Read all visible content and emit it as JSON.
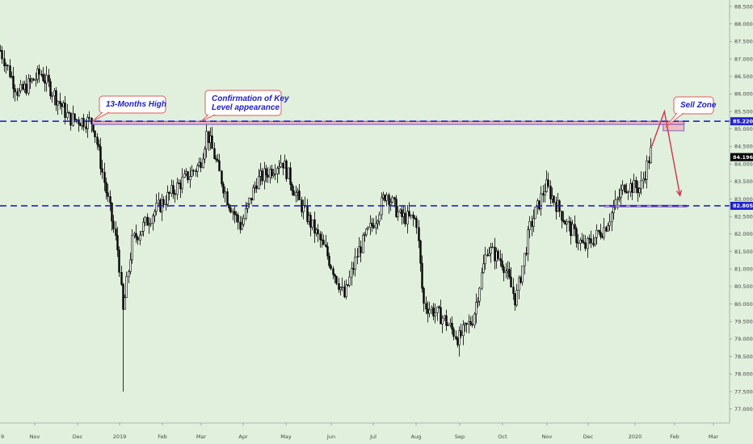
{
  "chart_data": {
    "type": "candlestick",
    "x_labels": [
      "Nov",
      "Dec",
      "2019",
      "Feb",
      "Mar",
      "Apr",
      "May",
      "Jun",
      "Jul",
      "Aug",
      "Sep",
      "Oct",
      "Nov",
      "Dec",
      "2020",
      "Feb",
      "Mar"
    ],
    "edge_x_label": "9",
    "y_ticks": [
      "88.500",
      "88.000",
      "87.500",
      "87.000",
      "86.500",
      "86.000",
      "85.500",
      "85.000",
      "84.500",
      "84.000",
      "83.500",
      "83.000",
      "82.500",
      "82.000",
      "81.500",
      "81.000",
      "80.500",
      "80.000",
      "79.500",
      "79.000",
      "78.500",
      "78.000",
      "77.500",
      "77.000"
    ],
    "ylim": [
      76.6,
      88.6
    ],
    "levels": [
      {
        "value": 85.22,
        "label": "85.220",
        "color": "#2222cc",
        "style": "dashed"
      },
      {
        "value": 82.805,
        "label": "82.805",
        "color": "#2222cc",
        "style": "dashed"
      }
    ],
    "last_price": {
      "value": 84.196,
      "label": "84.196",
      "color": "#000000"
    },
    "trend_anchors": [
      {
        "date": "2018-10-01",
        "price": 87.8
      },
      {
        "date": "2018-10-20",
        "price": 86.0
      },
      {
        "date": "2018-11-05",
        "price": 86.6
      },
      {
        "date": "2018-11-25",
        "price": 85.3
      },
      {
        "date": "2018-12-12",
        "price": 85.2
      },
      {
        "date": "2018-12-22",
        "price": 83.2
      },
      {
        "date": "2018-12-31",
        "price": 81.4
      },
      {
        "date": "2019-01-03",
        "price": 79.7
      },
      {
        "date": "2019-01-10",
        "price": 81.8
      },
      {
        "date": "2019-01-25",
        "price": 82.6
      },
      {
        "date": "2019-02-10",
        "price": 83.3
      },
      {
        "date": "2019-02-28",
        "price": 84.0
      },
      {
        "date": "2019-03-05",
        "price": 84.9
      },
      {
        "date": "2019-03-20",
        "price": 83.0
      },
      {
        "date": "2019-03-30",
        "price": 82.2
      },
      {
        "date": "2019-04-10",
        "price": 83.5
      },
      {
        "date": "2019-04-28",
        "price": 84.1
      },
      {
        "date": "2019-05-10",
        "price": 82.9
      },
      {
        "date": "2019-05-28",
        "price": 81.5
      },
      {
        "date": "2019-06-10",
        "price": 80.2
      },
      {
        "date": "2019-06-20",
        "price": 81.5
      },
      {
        "date": "2019-07-03",
        "price": 82.5
      },
      {
        "date": "2019-07-10",
        "price": 83.2
      },
      {
        "date": "2019-07-20",
        "price": 82.5
      },
      {
        "date": "2019-08-01",
        "price": 82.4
      },
      {
        "date": "2019-08-06",
        "price": 80.0
      },
      {
        "date": "2019-08-20",
        "price": 79.6
      },
      {
        "date": "2019-08-31",
        "price": 79.0
      },
      {
        "date": "2019-09-10",
        "price": 79.6
      },
      {
        "date": "2019-09-20",
        "price": 81.6
      },
      {
        "date": "2019-10-01",
        "price": 81.2
      },
      {
        "date": "2019-10-10",
        "price": 80.1
      },
      {
        "date": "2019-10-20",
        "price": 82.2
      },
      {
        "date": "2019-10-31",
        "price": 83.4
      },
      {
        "date": "2019-11-15",
        "price": 82.3
      },
      {
        "date": "2019-11-28",
        "price": 81.6
      },
      {
        "date": "2019-12-12",
        "price": 82.2
      },
      {
        "date": "2019-12-25",
        "price": 83.4
      },
      {
        "date": "2020-01-05",
        "price": 83.3
      },
      {
        "date": "2020-01-12",
        "price": 84.2
      },
      {
        "date": "2020-01-14",
        "price": 84.5
      }
    ],
    "lows": [
      {
        "date": "2019-01-03",
        "price": 77.5
      },
      {
        "date": "2019-08-31",
        "price": 78.5
      }
    ],
    "zones": [
      {
        "name": "sell-zone",
        "price_top": 85.22,
        "price_bottom": 84.95,
        "from": "2020-01-23",
        "to": "2020-02-08",
        "fill": "#f2b4b4",
        "stroke": "#7a66cc"
      },
      {
        "name": "top-level-band",
        "price_top": 85.22,
        "price_bottom": 85.13,
        "from": "2018-12-12",
        "to": "2020-02-08",
        "fill": "#f0a6b8",
        "stroke": "#6a5acd"
      },
      {
        "name": "support-band",
        "price_top": 82.82,
        "price_bottom": 82.78,
        "from": "2019-12-12",
        "to": "2020-02-10",
        "fill": "#f0a6b8",
        "stroke": "#6a5acd"
      }
    ],
    "projection": [
      {
        "date": "2020-01-14",
        "price": 84.5
      },
      {
        "date": "2020-01-24",
        "price": 85.5
      },
      {
        "date": "2020-02-05",
        "price": 83.1
      }
    ],
    "annotations": [
      {
        "name": "13-months-high",
        "lines": [
          "13-Months High"
        ],
        "anchor_date": "2018-12-12",
        "anchor_price": 85.22
      },
      {
        "name": "confirmation",
        "lines": [
          "Confirmation of Key",
          "Level appearance"
        ],
        "anchor_date": "2019-03-01",
        "anchor_price": 85.22
      },
      {
        "name": "sell-zone",
        "lines": [
          "Sell Zone"
        ],
        "anchor_date": "2020-01-25",
        "anchor_price": 85.05
      }
    ],
    "colors": {
      "background": "#e0f0dc",
      "candle": "#000000",
      "level_line": "#2222cc",
      "projection": "#d23050",
      "annotation_border": "#e05a5a",
      "annotation_text": "#2020c0"
    }
  }
}
